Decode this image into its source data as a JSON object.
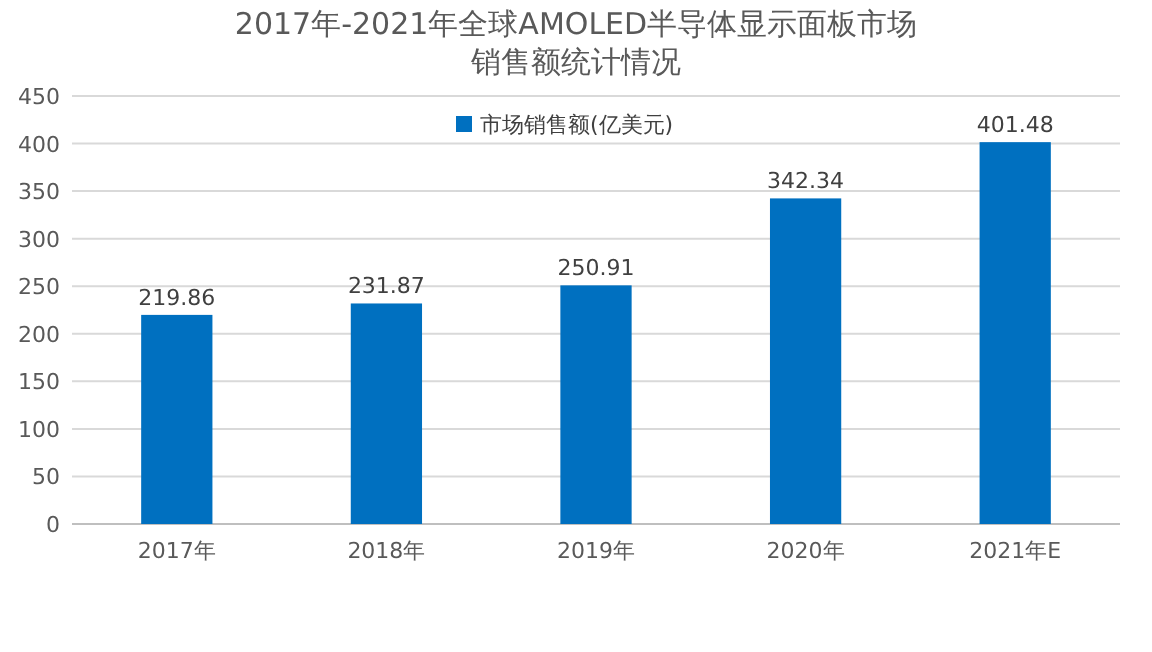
{
  "chart_data": {
    "type": "bar",
    "title": "2017年-2021年全球AMOLED半导体显示面板市场销售额统计情况",
    "categories": [
      "2017年",
      "2018年",
      "2019年",
      "2020年",
      "2021年E"
    ],
    "series": [
      {
        "name": "市场销售额(亿美元)",
        "color": "#0070c0",
        "values": [
          219.86,
          231.87,
          250.91,
          342.34,
          401.48
        ]
      }
    ],
    "ylim": [
      0,
      450
    ],
    "yticks": [
      0,
      50,
      100,
      150,
      200,
      250,
      300,
      350,
      400,
      450
    ],
    "grid": "y",
    "legend": "top",
    "data_labels": true
  }
}
